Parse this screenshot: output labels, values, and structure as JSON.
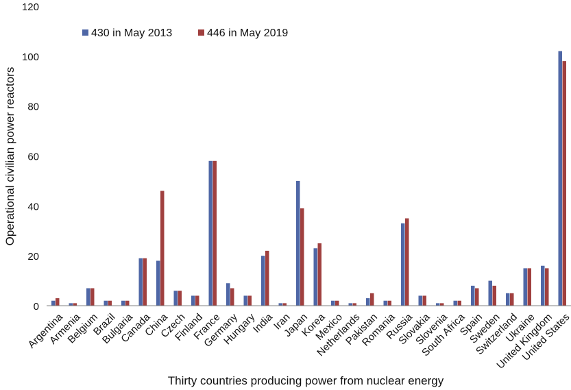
{
  "chart_data": {
    "type": "bar",
    "title": "",
    "xlabel": "Thirty countries producing power from nuclear energy",
    "ylabel": "Operational civilian power reactors",
    "ylim": [
      0,
      120
    ],
    "yticks": [
      0,
      20,
      40,
      60,
      80,
      100,
      120
    ],
    "grid": false,
    "legend_position": "top-left",
    "categories": [
      "Argentina",
      "Armenia",
      "Belgium",
      "Brazil",
      "Bulgaria",
      "Canada",
      "China",
      "Czech",
      "Finland",
      "France",
      "Germany",
      "Hungary",
      "India",
      "Iran",
      "Japan",
      "Korea",
      "Mexico",
      "Netherlands",
      "Pakistan",
      "Romania",
      "Russia",
      "Slovakia",
      "Slovenia",
      "South Africa",
      "Spain",
      "Sweden",
      "Switzerland",
      "Ukraine",
      "United Kingdom",
      "United States"
    ],
    "series": [
      {
        "name": "430 in May 2013",
        "color": "#4f67a6",
        "values": [
          2,
          1,
          7,
          2,
          2,
          19,
          18,
          6,
          4,
          58,
          9,
          4,
          20,
          1,
          50,
          23,
          2,
          1,
          3,
          2,
          33,
          4,
          1,
          2,
          8,
          10,
          5,
          15,
          16,
          102
        ]
      },
      {
        "name": "446 in May 2019",
        "color": "#a0403f",
        "values": [
          3,
          1,
          7,
          2,
          2,
          19,
          46,
          6,
          4,
          58,
          7,
          4,
          22,
          1,
          39,
          25,
          2,
          1,
          5,
          2,
          35,
          4,
          1,
          2,
          7,
          8,
          5,
          15,
          15,
          98
        ]
      }
    ]
  }
}
